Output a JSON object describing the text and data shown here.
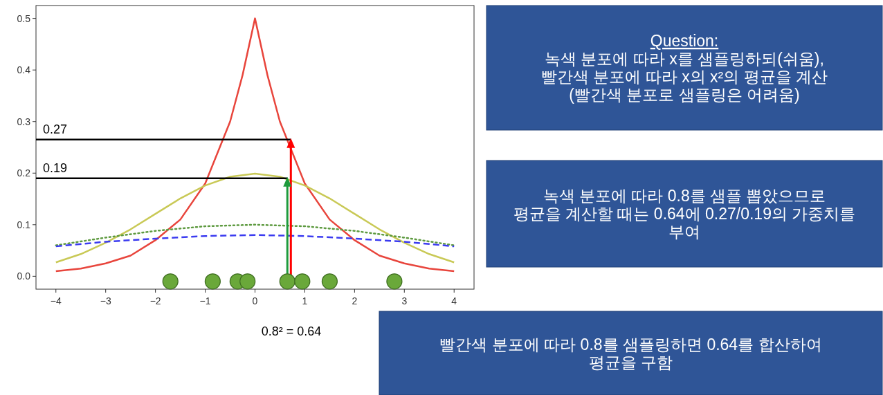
{
  "chart_data": {
    "type": "line",
    "xlim": [
      -4.4,
      4.4
    ],
    "ylim": [
      -0.025,
      0.525
    ],
    "xticks": [
      -4,
      -3,
      -2,
      -1,
      0,
      1,
      2,
      3,
      4
    ],
    "yticks": [
      {
        "value": 0,
        "label": "0.0"
      },
      {
        "value": 0.1,
        "label": "0.1"
      },
      {
        "value": 0.2,
        "label": "0.2"
      },
      {
        "value": 0.3,
        "label": "0.3"
      },
      {
        "value": 0.4,
        "label": "0.4"
      },
      {
        "value": 0.5,
        "label": "0.5"
      }
    ],
    "series": [
      {
        "color": "#e8453c",
        "line_style": "solid",
        "x": [
          -4,
          -3.5,
          -3,
          -2.5,
          -2,
          -1.5,
          -1,
          -0.5,
          -0.25,
          0,
          0.25,
          0.5,
          1,
          1.5,
          2,
          2.5,
          3,
          3.5,
          4
        ],
        "values": [
          0.01,
          0.015,
          0.025,
          0.04,
          0.07,
          0.11,
          0.18,
          0.3,
          0.39,
          0.5,
          0.39,
          0.3,
          0.18,
          0.11,
          0.07,
          0.04,
          0.025,
          0.015,
          0.01
        ]
      },
      {
        "color": "#c9c956",
        "line_style": "solid",
        "x": [
          -4,
          -3.5,
          -3,
          -2.5,
          -2,
          -1.5,
          -1,
          -0.5,
          0,
          0.5,
          1,
          1.5,
          2,
          2.5,
          3,
          3.5,
          4
        ],
        "values": [
          0.027,
          0.043,
          0.065,
          0.091,
          0.121,
          0.151,
          0.176,
          0.193,
          0.199,
          0.193,
          0.176,
          0.151,
          0.121,
          0.091,
          0.065,
          0.043,
          0.027
        ]
      },
      {
        "color": "#5e9a40",
        "line_style": "dotted",
        "x": [
          -4,
          -3,
          -2,
          -1,
          0,
          1,
          2,
          3,
          4
        ],
        "values": [
          0.06,
          0.075,
          0.088,
          0.097,
          0.1,
          0.097,
          0.088,
          0.075,
          0.06
        ]
      },
      {
        "color": "#3b3bf0",
        "line_style": "dashed",
        "x": [
          -4,
          -3,
          -2,
          -1,
          0,
          1,
          2,
          3,
          4
        ],
        "values": [
          0.058,
          0.067,
          0.073,
          0.078,
          0.08,
          0.078,
          0.073,
          0.067,
          0.058
        ]
      },
      {
        "color": "#000000",
        "line_style": "solid",
        "x": [
          -4.4,
          0.72
        ],
        "values": [
          0.265,
          0.265
        ]
      },
      {
        "color": "#000000",
        "line_style": "solid",
        "x": [
          -4.4,
          0.65
        ],
        "values": [
          0.19,
          0.19
        ]
      },
      {
        "type": "scatter",
        "color": "#6aa83a",
        "marker": "circle",
        "x": [
          -1.7,
          -0.85,
          -0.35,
          -0.15,
          0.65,
          0.95,
          1.5,
          2.8
        ],
        "values": [
          -0.01,
          -0.01,
          -0.01,
          -0.01,
          -0.01,
          -0.01,
          -0.01,
          -0.01
        ]
      }
    ],
    "annotations": [
      {
        "text": "0.27",
        "x": -4.4,
        "y": 0.265
      },
      {
        "text": "0.19",
        "x": -4.4,
        "y": 0.19
      },
      "0.8² = 0.64",
      "Question:\n녹색 분포에 따라 x를 샘플링하되(쉬움),\n빨간색 분포에 따라 x의 x²의 평균을 계산\n(빨간색 분포로 샘플링은 어려움)",
      "녹색 분포에 따라 0.8를 샘플 뽑았으므로\n평균을 계산할 때는 0.64에 0.27/0.19의 가중치를\n부여",
      "빨간색 분포에 따라 0.8를 샘플링하면 0.64를 합산하여\n평균을 구함"
    ]
  }
}
